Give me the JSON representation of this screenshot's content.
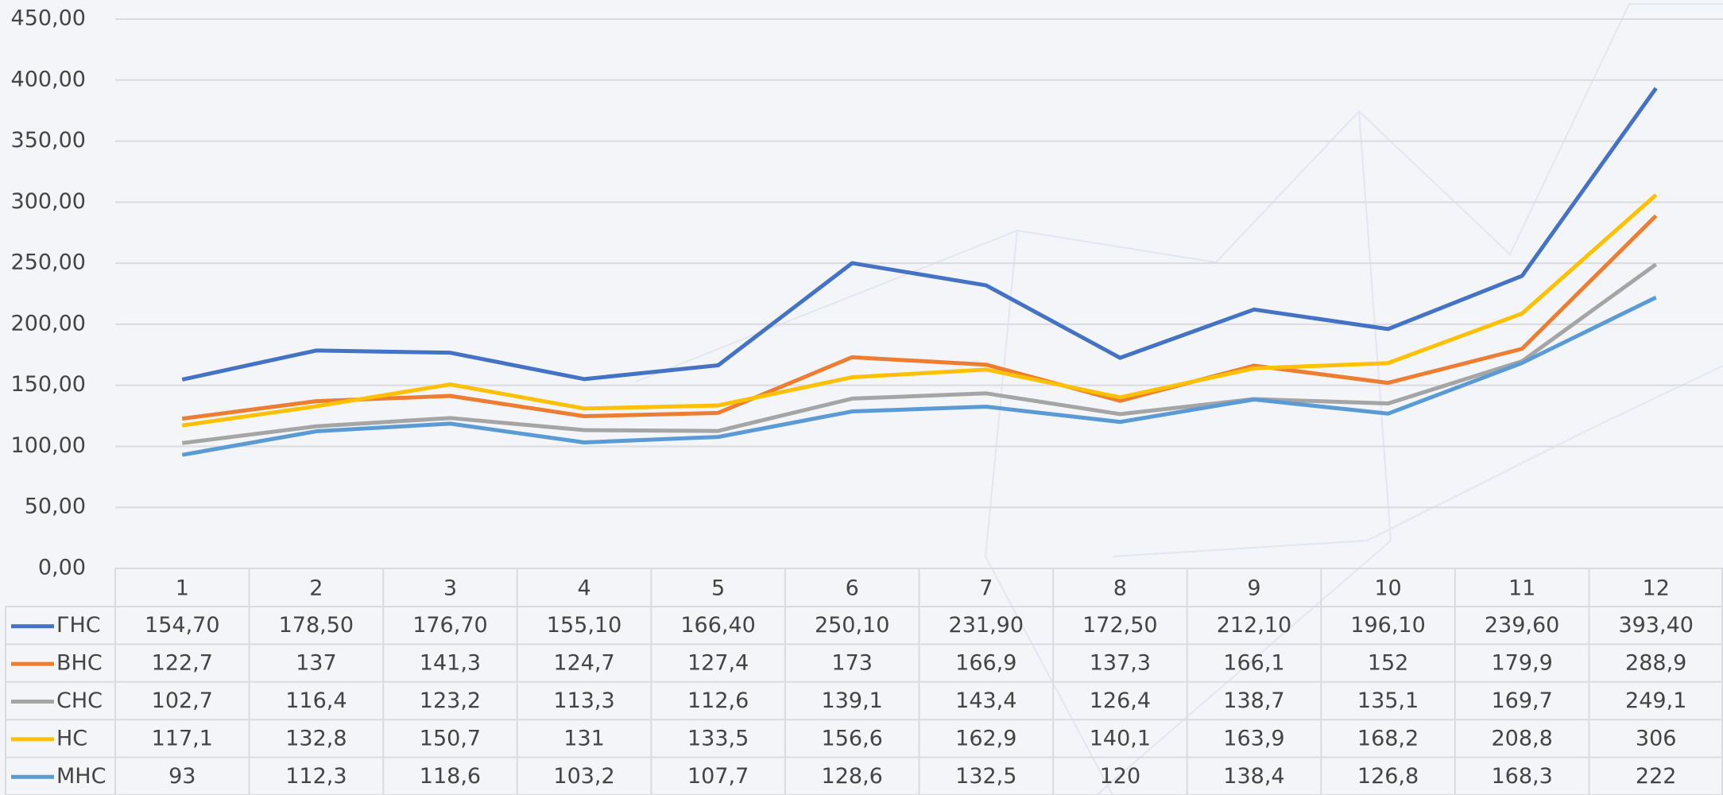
{
  "chart_data": {
    "type": "line",
    "categories": [
      "1",
      "2",
      "3",
      "4",
      "5",
      "6",
      "7",
      "8",
      "9",
      "10",
      "11",
      "12"
    ],
    "ylim": [
      0,
      450
    ],
    "yticks": [
      {
        "value": 0,
        "label": "0,00"
      },
      {
        "value": 50,
        "label": "50,00"
      },
      {
        "value": 100,
        "label": "100,00"
      },
      {
        "value": 150,
        "label": "150,00"
      },
      {
        "value": 200,
        "label": "200,00"
      },
      {
        "value": 250,
        "label": "250,00"
      },
      {
        "value": 300,
        "label": "300,00"
      },
      {
        "value": 350,
        "label": "350,00"
      },
      {
        "value": 400,
        "label": "400,00"
      },
      {
        "value": 450,
        "label": "450,00"
      }
    ],
    "grid": true,
    "series": [
      {
        "name": "ГНС",
        "color": "#4472c4",
        "values": [
          154.7,
          178.5,
          176.7,
          155.1,
          166.4,
          250.1,
          231.9,
          172.5,
          212.1,
          196.1,
          239.6,
          393.4
        ],
        "value_labels": [
          "154,70",
          "178,50",
          "176,70",
          "155,10",
          "166,40",
          "250,10",
          "231,90",
          "172,50",
          "212,10",
          "196,10",
          "239,60",
          "393,40"
        ]
      },
      {
        "name": "ВНС",
        "color": "#ed7d31",
        "values": [
          122.7,
          137,
          141.3,
          124.7,
          127.4,
          173,
          166.9,
          137.3,
          166.1,
          152,
          179.9,
          288.9
        ],
        "value_labels": [
          "122,7",
          "137",
          "141,3",
          "124,7",
          "127,4",
          "173",
          "166,9",
          "137,3",
          "166,1",
          "152",
          "179,9",
          "288,9"
        ]
      },
      {
        "name": "СНС",
        "color": "#a5a5a5",
        "values": [
          102.7,
          116.4,
          123.2,
          113.3,
          112.6,
          139.1,
          143.4,
          126.4,
          138.7,
          135.1,
          169.7,
          249.1
        ],
        "value_labels": [
          "102,7",
          "116,4",
          "123,2",
          "113,3",
          "112,6",
          "139,1",
          "143,4",
          "126,4",
          "138,7",
          "135,1",
          "169,7",
          "249,1"
        ]
      },
      {
        "name": "НС",
        "color": "#ffc000",
        "values": [
          117.1,
          132.8,
          150.7,
          131,
          133.5,
          156.6,
          162.9,
          140.1,
          163.9,
          168.2,
          208.8,
          306
        ],
        "value_labels": [
          "117,1",
          "132,8",
          "150,7",
          "131",
          "133,5",
          "156,6",
          "162,9",
          "140,1",
          "163,9",
          "168,2",
          "208,8",
          "306"
        ]
      },
      {
        "name": "МНС",
        "color": "#5b9bd5",
        "values": [
          93,
          112.3,
          118.6,
          103.2,
          107.7,
          128.6,
          132.5,
          120,
          138.4,
          126.8,
          168.3,
          222
        ],
        "value_labels": [
          "93",
          "112,3",
          "118,6",
          "103,2",
          "107,7",
          "128,6",
          "132,5",
          "120",
          "138,4",
          "126,8",
          "168,3",
          "222"
        ]
      }
    ]
  }
}
